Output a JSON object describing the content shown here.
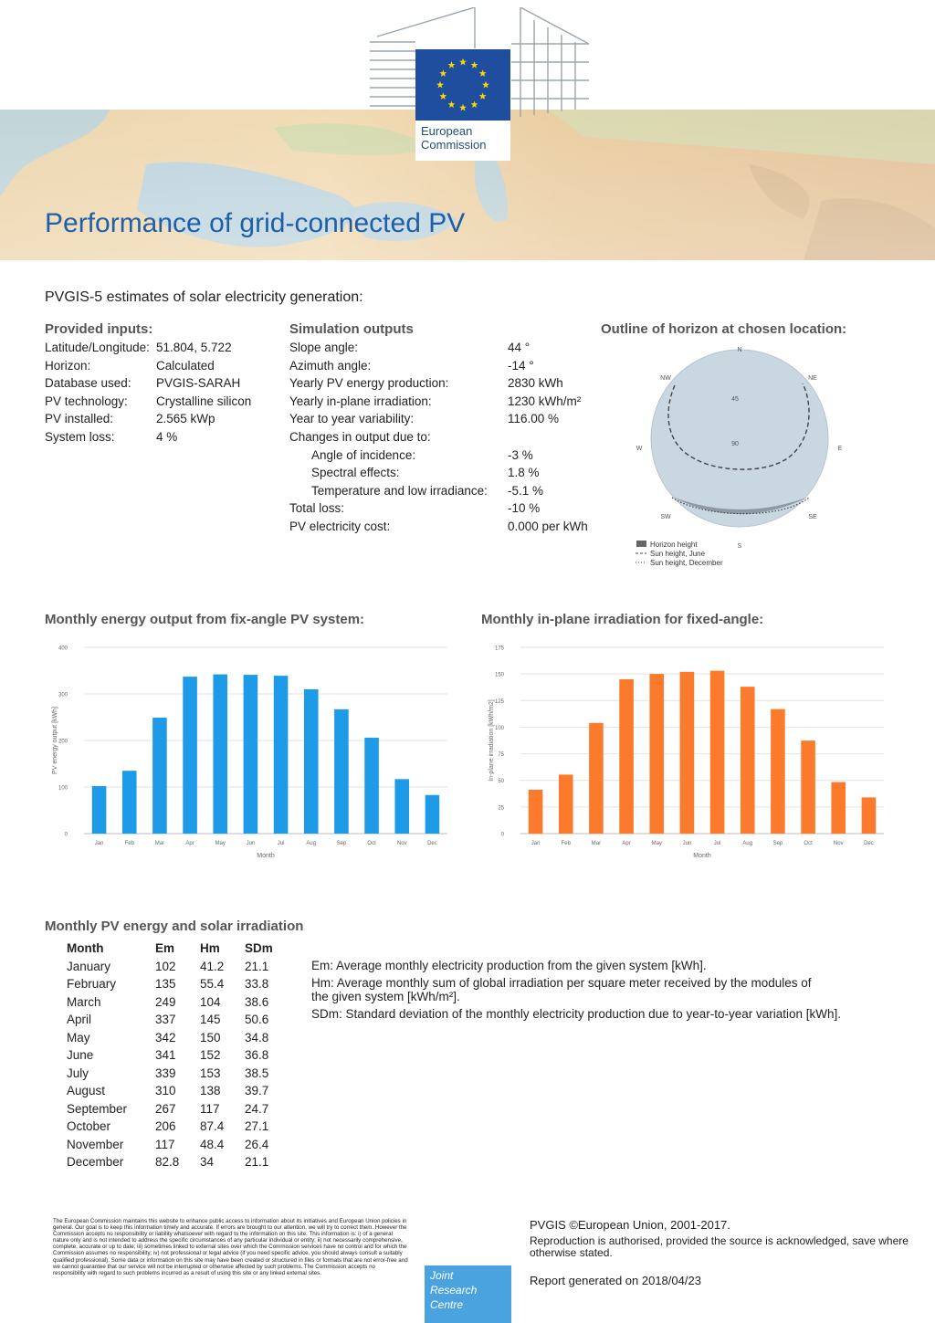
{
  "header": {
    "org_line1": "European",
    "org_line2": "Commission",
    "title": "Performance of grid-connected PV"
  },
  "subtitle": "PVGIS-5 estimates of solar electricity generation:",
  "inputs": {
    "heading": "Provided inputs:",
    "rows": [
      {
        "k": "Latitude/Longitude:",
        "v": "51.804, 5.722"
      },
      {
        "k": "Horizon:",
        "v": "Calculated"
      },
      {
        "k": "Database used:",
        "v": "PVGIS-SARAH"
      },
      {
        "k": "PV technology:",
        "v": "Crystalline silicon"
      },
      {
        "k": "PV installed:",
        "v": "2.565 kWp"
      },
      {
        "k": "System loss:",
        "v": "4 %"
      }
    ]
  },
  "outputs": {
    "heading": "Simulation outputs",
    "rows": [
      {
        "k": "Slope angle:",
        "v": "44 °"
      },
      {
        "k": "Azimuth angle:",
        "v": "-14 °"
      },
      {
        "k": "Yearly PV energy production:",
        "v": "2830 kWh"
      },
      {
        "k": "Yearly in-plane irradiation:",
        "v": "1230 kWh/m²"
      },
      {
        "k": "Year to year variability:",
        "v": "116.00 %"
      },
      {
        "k": "Changes in output due to:",
        "v": ""
      },
      {
        "k": "Angle of incidence:",
        "v": "-3 %"
      },
      {
        "k": "Spectral effects:",
        "v": "1.8 %"
      },
      {
        "k": "Temperature and low irradiance:",
        "v": "-5.1 %"
      },
      {
        "k": "Total loss:",
        "v": "-10 %"
      },
      {
        "k": "PV electricity cost:",
        "v": "0.000 per kWh"
      }
    ]
  },
  "horizon": {
    "heading": "Outline of horizon at chosen location:",
    "directions": {
      "n": "N",
      "ne": "NE",
      "e": "E",
      "se": "SE",
      "s": "S",
      "sw": "SW",
      "w": "W",
      "nw": "NW"
    },
    "ring_labels": [
      "45",
      "90"
    ],
    "legend": [
      "Horizon height",
      "Sun height, June",
      "Sun height, December"
    ],
    "colors": {
      "disk": "#c9d7e1",
      "line": "#444444"
    }
  },
  "chart_data": [
    {
      "type": "bar",
      "heading": "Monthly energy output from fix-angle PV system:",
      "categories": [
        "Jan",
        "Feb",
        "Mar",
        "Apr",
        "May",
        "Jun",
        "Jul",
        "Aug",
        "Sep",
        "Oct",
        "Nov",
        "Dec"
      ],
      "values": [
        102,
        135,
        249,
        337,
        342,
        341,
        339,
        310,
        267,
        206,
        117,
        82.8
      ],
      "xlabel": "Month",
      "ylabel": "PV energy output [kWh]",
      "ylim": [
        0,
        400
      ],
      "yticks": [
        0,
        100,
        200,
        300,
        400
      ],
      "color": "#1e9be8",
      "grid": true
    },
    {
      "type": "bar",
      "heading": "Monthly in-plane irradiation for fixed-angle:",
      "categories": [
        "Jan",
        "Feb",
        "Mar",
        "Apr",
        "May",
        "Jun",
        "Jul",
        "Aug",
        "Sep",
        "Oct",
        "Nov",
        "Dec"
      ],
      "values": [
        41.2,
        55.4,
        104,
        145,
        150,
        152,
        153,
        138,
        117,
        87.4,
        48.4,
        34
      ],
      "xlabel": "Month",
      "ylabel": "In-plane irradiation [kWh/m2]",
      "ylim": [
        0,
        175
      ],
      "yticks": [
        0,
        25,
        50,
        75,
        100,
        125,
        150,
        175
      ],
      "color": "#fb7a2c",
      "grid": true
    }
  ],
  "monthly": {
    "heading": "Monthly PV energy and solar irradiation",
    "columns": [
      "Month",
      "Em",
      "Hm",
      "SDm"
    ],
    "rows": [
      [
        "January",
        "102",
        "41.2",
        "21.1"
      ],
      [
        "February",
        "135",
        "55.4",
        "33.8"
      ],
      [
        "March",
        "249",
        "104",
        "38.6"
      ],
      [
        "April",
        "337",
        "145",
        "50.6"
      ],
      [
        "May",
        "342",
        "150",
        "34.8"
      ],
      [
        "June",
        "341",
        "152",
        "36.8"
      ],
      [
        "July",
        "339",
        "153",
        "38.5"
      ],
      [
        "August",
        "310",
        "138",
        "39.7"
      ],
      [
        "September",
        "267",
        "117",
        "24.7"
      ],
      [
        "October",
        "206",
        "87.4",
        "27.1"
      ],
      [
        "November",
        "117",
        "48.4",
        "26.4"
      ],
      [
        "December",
        "82.8",
        "34",
        "21.1"
      ]
    ],
    "notes": [
      "Em: Average monthly electricity production from the given system [kWh].",
      "Hm: Average monthly sum of global irradiation per square meter received by the modules of the given system [kWh/m²].",
      "SDm: Standard deviation of the monthly electricity production due to year-to-year variation [kWh]."
    ]
  },
  "footer": {
    "disclaimer": "The European Commission maintains this website to enhance public access to information about its initiatives and European Union policies in general. Our goal is to keep this information timely and accurate. If errors are brought to our attention, we will try to correct them. However the Commission accepts no responsibility or liability whatsoever with regard to the information on this site. This information is: i) of a general nature only and is not intended to address the specific circumstances of any particular individual or entity; ii) not necessarily comprehensive, complete, accurate or up to date; iii) sometimes linked to external sites over which the Commission services have no control and for which the Commission assumes no responsibility; iv) not professional or legal advice (if you need specific advice, you should always consult a suitably qualified professional). Some data or information on this site may have been created or structured in files or formats that are not error-free and we cannot guarantee that our service will not be interrupted or otherwise affected by such problems. The Commission accepts no responsibility with regard to such problems incurred as a result of using this site or any linked external sites.",
    "jrc_line1": "Joint",
    "jrc_line2": "Research",
    "jrc_line3": "Centre",
    "copyright": "PVGIS ©European Union, 2001-2017.",
    "reproduction": "Reproduction is authorised, provided the source is acknowledged, save where otherwise stated.",
    "generated": "Report generated on 2018/04/23"
  }
}
